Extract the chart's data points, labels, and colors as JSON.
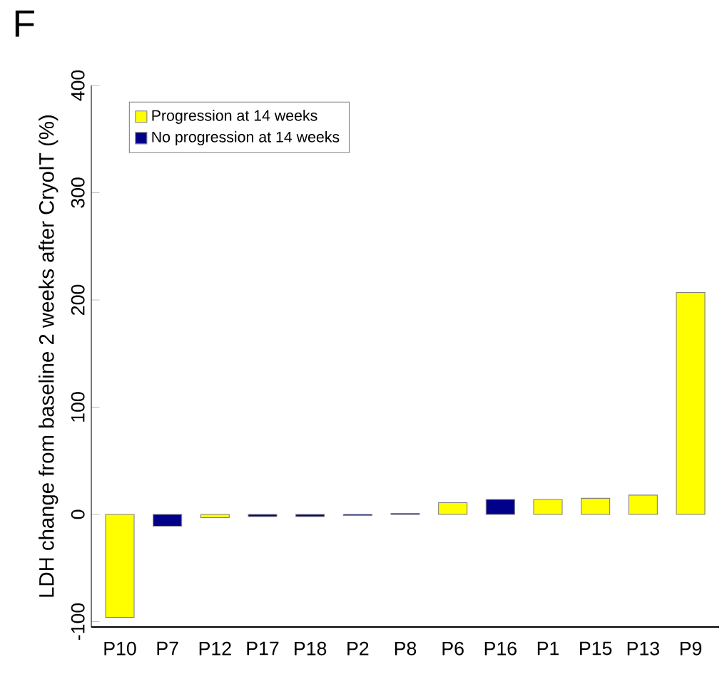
{
  "chart_data": {
    "type": "bar",
    "ylabel": "LDH change from baseline 2 weeks after CryoIT (%)",
    "annotations": [
      "F"
    ],
    "categories": [
      "P10",
      "P7",
      "P12",
      "P17",
      "P18",
      "P2",
      "P8",
      "P6",
      "P16",
      "P1",
      "P15",
      "P13",
      "P9"
    ],
    "series": [
      {
        "name": "Progression at 14 weeks",
        "color": "#ffff00",
        "values": [
          -96,
          null,
          -3,
          null,
          null,
          null,
          null,
          11,
          null,
          14,
          15,
          18,
          207
        ]
      },
      {
        "name": "No progression at 14 weeks",
        "color": "#00008b",
        "values": [
          null,
          -11,
          null,
          -2,
          -2,
          -1,
          1,
          null,
          14,
          null,
          null,
          null,
          null
        ]
      }
    ],
    "ylim": [
      -105,
      400
    ],
    "yticks": [
      -100,
      0,
      100,
      200,
      300,
      400
    ],
    "legend": "top left",
    "grid": false
  }
}
